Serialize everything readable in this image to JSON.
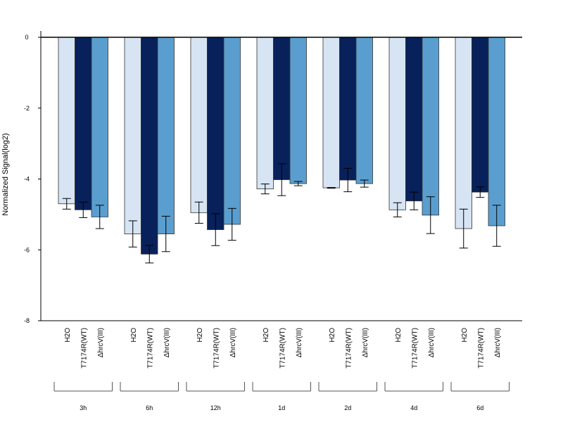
{
  "chart_data": {
    "type": "bar",
    "ylabel": "Normalized Signal(log2)",
    "ylim": [
      -8,
      0
    ],
    "yticks": [
      "0",
      "-2",
      "-4",
      "-6",
      "-8"
    ],
    "bar_labels": [
      "H2O",
      "T7174R(WT)",
      "ΔhrcV(III)"
    ],
    "categories": [
      "3h",
      "6h",
      "12h",
      "1d",
      "2d",
      "4d",
      "6d"
    ],
    "series": [
      {
        "values": [
          -4.7,
          -5.55,
          -4.95,
          -4.28,
          -4.25,
          -4.87,
          -5.4
        ],
        "errors": [
          0.15,
          0.37,
          0.3,
          0.14,
          0.01,
          0.2,
          0.55
        ],
        "color": "#d6e4f3"
      },
      {
        "values": [
          -4.87,
          -6.12,
          -5.43,
          -4.02,
          -4.03,
          -4.62,
          -4.37
        ],
        "errors": [
          0.22,
          0.25,
          0.45,
          0.45,
          0.33,
          0.25,
          0.15
        ],
        "color": "#08215a"
      },
      {
        "values": [
          -5.07,
          -5.55,
          -5.28,
          -4.13,
          -4.13,
          -5.02,
          -5.32
        ],
        "errors": [
          0.33,
          0.5,
          0.45,
          0.06,
          0.1,
          0.52,
          0.58
        ],
        "color": "#5a9ecf"
      }
    ],
    "grid": false,
    "legend": "none"
  }
}
